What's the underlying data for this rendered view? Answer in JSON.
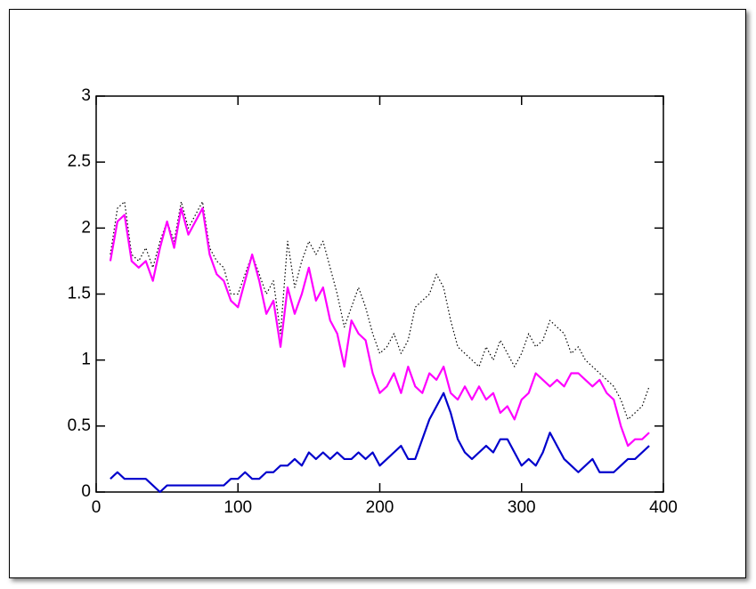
{
  "chart_data": {
    "type": "line",
    "x": [
      10,
      15,
      20,
      25,
      30,
      35,
      40,
      45,
      50,
      55,
      60,
      65,
      70,
      75,
      80,
      85,
      90,
      95,
      100,
      105,
      110,
      115,
      120,
      125,
      130,
      135,
      140,
      145,
      150,
      155,
      160,
      165,
      170,
      175,
      180,
      185,
      190,
      195,
      200,
      205,
      210,
      215,
      220,
      225,
      230,
      235,
      240,
      245,
      250,
      255,
      260,
      265,
      270,
      275,
      280,
      285,
      290,
      295,
      300,
      305,
      310,
      315,
      320,
      325,
      330,
      335,
      340,
      345,
      350,
      355,
      360,
      365,
      370,
      375,
      380,
      385,
      390
    ],
    "series": [
      {
        "color": "#000000",
        "dash": "dotted",
        "values": [
          1.8,
          2.15,
          2.2,
          1.8,
          1.75,
          1.85,
          1.7,
          1.9,
          2.05,
          1.9,
          2.2,
          2.0,
          2.1,
          2.2,
          1.85,
          1.75,
          1.7,
          1.5,
          1.5,
          1.65,
          1.8,
          1.65,
          1.5,
          1.6,
          1.2,
          1.9,
          1.55,
          1.75,
          1.9,
          1.8,
          1.9,
          1.7,
          1.5,
          1.25,
          1.4,
          1.55,
          1.4,
          1.2,
          1.05,
          1.1,
          1.2,
          1.05,
          1.15,
          1.4,
          1.45,
          1.5,
          1.65,
          1.55,
          1.3,
          1.1,
          1.05,
          1.0,
          0.95,
          1.1,
          1.0,
          1.15,
          1.05,
          0.95,
          1.05,
          1.2,
          1.1,
          1.15,
          1.3,
          1.25,
          1.2,
          1.05,
          1.1,
          1.0,
          0.95,
          0.9,
          0.85,
          0.8,
          0.7,
          0.55,
          0.6,
          0.65,
          0.8
        ]
      },
      {
        "color": "#ff00ff",
        "dash": "solid",
        "values": [
          1.75,
          2.05,
          2.1,
          1.75,
          1.7,
          1.75,
          1.6,
          1.85,
          2.05,
          1.85,
          2.15,
          1.95,
          2.05,
          2.15,
          1.8,
          1.65,
          1.6,
          1.45,
          1.4,
          1.6,
          1.8,
          1.6,
          1.35,
          1.45,
          1.1,
          1.55,
          1.35,
          1.5,
          1.7,
          1.45,
          1.55,
          1.3,
          1.2,
          0.95,
          1.3,
          1.2,
          1.15,
          0.9,
          0.75,
          0.8,
          0.9,
          0.75,
          0.95,
          0.8,
          0.75,
          0.9,
          0.85,
          0.95,
          0.75,
          0.7,
          0.8,
          0.7,
          0.8,
          0.7,
          0.75,
          0.6,
          0.65,
          0.55,
          0.7,
          0.75,
          0.9,
          0.85,
          0.8,
          0.85,
          0.8,
          0.9,
          0.9,
          0.85,
          0.8,
          0.85,
          0.75,
          0.7,
          0.5,
          0.35,
          0.4,
          0.4,
          0.45
        ]
      },
      {
        "color": "#0000cc",
        "dash": "solid",
        "values": [
          0.1,
          0.15,
          0.1,
          0.1,
          0.1,
          0.1,
          0.05,
          0,
          0.05,
          0.05,
          0.05,
          0.05,
          0.05,
          0.05,
          0.05,
          0.05,
          0.05,
          0.1,
          0.1,
          0.15,
          0.1,
          0.1,
          0.15,
          0.15,
          0.2,
          0.2,
          0.25,
          0.2,
          0.3,
          0.25,
          0.3,
          0.25,
          0.3,
          0.25,
          0.25,
          0.3,
          0.25,
          0.3,
          0.2,
          0.25,
          0.3,
          0.35,
          0.25,
          0.25,
          0.4,
          0.55,
          0.65,
          0.75,
          0.6,
          0.4,
          0.3,
          0.25,
          0.3,
          0.35,
          0.3,
          0.4,
          0.4,
          0.3,
          0.2,
          0.25,
          0.2,
          0.3,
          0.45,
          0.35,
          0.25,
          0.2,
          0.15,
          0.2,
          0.25,
          0.15,
          0.15,
          0.15,
          0.2,
          0.25,
          0.25,
          0.3,
          0.35
        ]
      }
    ],
    "xlim": [
      0,
      400
    ],
    "xticks": [
      0,
      100,
      200,
      300,
      400
    ],
    "ylim": [
      0,
      3
    ],
    "yticks": [
      0,
      0.5,
      1,
      1.5,
      2,
      2.5,
      3
    ]
  }
}
